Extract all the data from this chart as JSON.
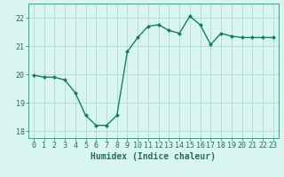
{
  "x": [
    0,
    1,
    2,
    3,
    4,
    5,
    6,
    7,
    8,
    9,
    10,
    11,
    12,
    13,
    14,
    15,
    16,
    17,
    18,
    19,
    20,
    21,
    22,
    23
  ],
  "y": [
    19.97,
    19.9,
    19.9,
    19.8,
    19.35,
    18.55,
    18.2,
    18.2,
    18.55,
    20.8,
    21.3,
    21.7,
    21.75,
    21.55,
    21.45,
    22.05,
    21.75,
    21.05,
    21.45,
    21.35,
    21.3,
    21.3,
    21.3,
    21.3
  ],
  "line_color": "#1a7a6e",
  "marker": "D",
  "marker_size": 2.0,
  "bg_color": "#d8f5f0",
  "grid_color": "#b8dbd6",
  "axis_color": "#4a9a8e",
  "tick_color": "#2a6a60",
  "xlabel": "Humidex (Indice chaleur)",
  "xlabel_fontsize": 7,
  "tick_fontsize": 6,
  "ylim": [
    17.75,
    22.5
  ],
  "xlim": [
    -0.5,
    23.5
  ],
  "yticks": [
    18,
    19,
    20,
    21,
    22
  ],
  "xticks": [
    0,
    1,
    2,
    3,
    4,
    5,
    6,
    7,
    8,
    9,
    10,
    11,
    12,
    13,
    14,
    15,
    16,
    17,
    18,
    19,
    20,
    21,
    22,
    23
  ],
  "linewidth": 1.0
}
